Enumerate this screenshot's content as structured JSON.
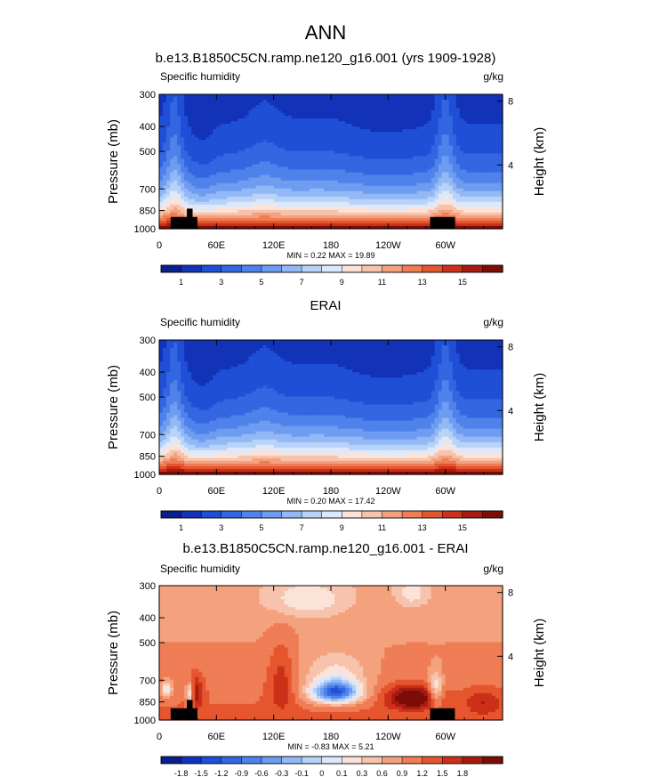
{
  "page": {
    "title": "ANN"
  },
  "chart_data": [
    {
      "type": "heatmap",
      "title": "b.e13.B1850C5CN.ramp.ne120_g16.001 (yrs 1909-1928)",
      "variable": "Specific humidity",
      "units": "g/kg",
      "ylabel": "Pressure (mb)",
      "y2label": "Height (km)",
      "x_ticks": [
        "0",
        "60E",
        "120E",
        "180",
        "120W",
        "60W"
      ],
      "x_tick_lon": [
        0,
        60,
        120,
        180,
        240,
        300
      ],
      "xlim": [
        0,
        360
      ],
      "y_ticks": [
        "300",
        "400",
        "500",
        "700",
        "850",
        "1000"
      ],
      "y_tick_p": [
        300,
        400,
        500,
        700,
        850,
        1000
      ],
      "ylim": [
        300,
        1000
      ],
      "y2_ticks": [
        "8",
        "4"
      ],
      "y2_tick_km": [
        8,
        4
      ],
      "stats": "MIN =  0.22  MAX =  19.89",
      "colorbar_labels": [
        "1",
        "3",
        "5",
        "7",
        "9",
        "11",
        "13",
        "15"
      ],
      "colorbar_levels": 16,
      "colors": [
        "#0a1f8c",
        "#1233b8",
        "#1f4fd6",
        "#3366e0",
        "#4f82ea",
        "#6e9cf0",
        "#92b8f5",
        "#b8d2f8",
        "#dde9fb",
        "#fbe3d8",
        "#f8c3ac",
        "#f4a27e",
        "#ef7d55",
        "#e5562f",
        "#cc3019",
        "#a81b10",
        "#7c0d07"
      ],
      "field": "humidity",
      "scale": [
        0.22,
        19.89
      ],
      "topography": true
    },
    {
      "type": "heatmap",
      "title": "ERAI",
      "variable": "Specific humidity",
      "units": "g/kg",
      "ylabel": "Pressure (mb)",
      "y2label": "Height (km)",
      "x_ticks": [
        "0",
        "60E",
        "120E",
        "180",
        "120W",
        "60W"
      ],
      "x_tick_lon": [
        0,
        60,
        120,
        180,
        240,
        300
      ],
      "xlim": [
        0,
        360
      ],
      "y_ticks": [
        "300",
        "400",
        "500",
        "700",
        "850",
        "1000"
      ],
      "y_tick_p": [
        300,
        400,
        500,
        700,
        850,
        1000
      ],
      "ylim": [
        300,
        1000
      ],
      "y2_ticks": [
        "8",
        "4"
      ],
      "y2_tick_km": [
        8,
        4
      ],
      "stats": "MIN =  0.20  MAX =  17.42",
      "colorbar_labels": [
        "1",
        "3",
        "5",
        "7",
        "9",
        "11",
        "13",
        "15"
      ],
      "colorbar_levels": 16,
      "colors": [
        "#0a1f8c",
        "#1233b8",
        "#1f4fd6",
        "#3366e0",
        "#4f82ea",
        "#6e9cf0",
        "#92b8f5",
        "#b8d2f8",
        "#dde9fb",
        "#fbe3d8",
        "#f8c3ac",
        "#f4a27e",
        "#ef7d55",
        "#e5562f",
        "#cc3019",
        "#a81b10",
        "#7c0d07"
      ],
      "field": "humidity",
      "scale": [
        0.2,
        17.42
      ],
      "topography": false
    },
    {
      "type": "heatmap",
      "title": "b.e13.B1850C5CN.ramp.ne120_g16.001 - ERAI",
      "variable": "Specific humidity",
      "units": "g/kg",
      "ylabel": "Pressure (mb)",
      "y2label": "Height (km)",
      "x_ticks": [
        "0",
        "60E",
        "120E",
        "180",
        "120W",
        "60W"
      ],
      "x_tick_lon": [
        0,
        60,
        120,
        180,
        240,
        300
      ],
      "xlim": [
        0,
        360
      ],
      "y_ticks": [
        "300",
        "400",
        "500",
        "700",
        "850",
        "1000"
      ],
      "y_tick_p": [
        300,
        400,
        500,
        700,
        850,
        1000
      ],
      "ylim": [
        300,
        1000
      ],
      "y2_ticks": [
        "8",
        "4"
      ],
      "y2_tick_km": [
        8,
        4
      ],
      "stats": "MIN = -0.83  MAX =  5.21",
      "colorbar_labels": [
        "-1.8",
        "-1.5",
        "-1.2",
        "-0.9",
        "-0.6",
        "-0.3",
        "-0.1",
        "0",
        "0.1",
        "0.3",
        "0.6",
        "0.9",
        "1.2",
        "1.5",
        "1.8"
      ],
      "colorbar_levels": 16,
      "colors": [
        "#0a1f8c",
        "#1233b8",
        "#1f4fd6",
        "#3366e0",
        "#4f82ea",
        "#6e9cf0",
        "#92b8f5",
        "#b8d2f8",
        "#dde9fb",
        "#fbe3d8",
        "#f8c3ac",
        "#f4a27e",
        "#ef7d55",
        "#e5562f",
        "#cc3019",
        "#a81b10",
        "#7c0d07"
      ],
      "field": "difference",
      "scale": [
        -0.83,
        5.21
      ],
      "topography": true
    }
  ]
}
